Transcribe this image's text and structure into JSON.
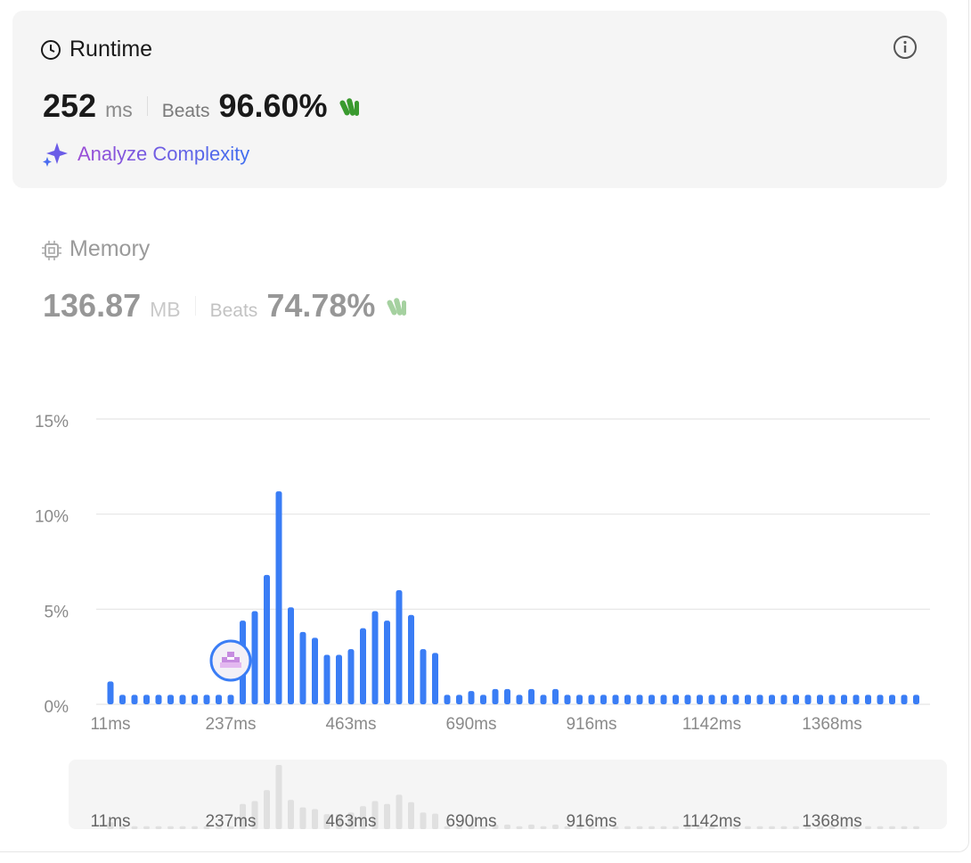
{
  "runtime": {
    "title": "Runtime",
    "value": "252",
    "unit": "ms",
    "beats_label": "Beats",
    "beats": "96.60%",
    "action": "Analyze Complexity"
  },
  "memory": {
    "title": "Memory",
    "value": "136.87",
    "unit": "MB",
    "beats_label": "Beats",
    "beats": "74.78%"
  },
  "chart_data": {
    "type": "bar",
    "color": "#3a7df5",
    "categories": [
      "11ms",
      null,
      null,
      null,
      null,
      null,
      null,
      null,
      null,
      null,
      "237ms",
      null,
      null,
      null,
      null,
      null,
      null,
      null,
      null,
      null,
      "463ms",
      null,
      null,
      null,
      null,
      null,
      null,
      null,
      null,
      null,
      "690ms",
      null,
      null,
      null,
      null,
      null,
      null,
      null,
      null,
      null,
      "916ms",
      null,
      null,
      null,
      null,
      null,
      null,
      null,
      null,
      null,
      "1142ms",
      null,
      null,
      null,
      null,
      null,
      null,
      null,
      null,
      null,
      "1368ms",
      null,
      null,
      null,
      null,
      null,
      null,
      null
    ],
    "values": [
      1.2,
      0.5,
      0.5,
      0.5,
      0.5,
      0.5,
      0.5,
      0.5,
      0.5,
      0.5,
      0.5,
      4.4,
      4.9,
      6.8,
      11.2,
      5.1,
      3.8,
      3.5,
      2.6,
      2.6,
      2.9,
      4.0,
      4.9,
      4.4,
      6.0,
      4.7,
      2.9,
      2.7,
      0.5,
      0.5,
      0.7,
      0.5,
      0.8,
      0.8,
      0.5,
      0.8,
      0.5,
      0.8,
      0.5,
      0.5,
      0.5,
      0.5,
      0.5,
      0.5,
      0.5,
      0.5,
      0.5,
      0.5,
      0.5,
      0.5,
      0.5,
      0.5,
      0.5,
      0.5,
      0.5,
      0.5,
      0.5,
      0.5,
      0.5,
      0.5,
      0.5,
      0.5,
      0.5,
      0.5,
      0.5,
      0.5,
      0.5,
      0.5
    ],
    "ylim": [
      0,
      15
    ],
    "yticks": [
      {
        "value": 0,
        "label": "0%"
      },
      {
        "value": 5,
        "label": "5%"
      },
      {
        "value": 10,
        "label": "10%"
      },
      {
        "value": 15,
        "label": "15%"
      }
    ],
    "grid": true
  }
}
